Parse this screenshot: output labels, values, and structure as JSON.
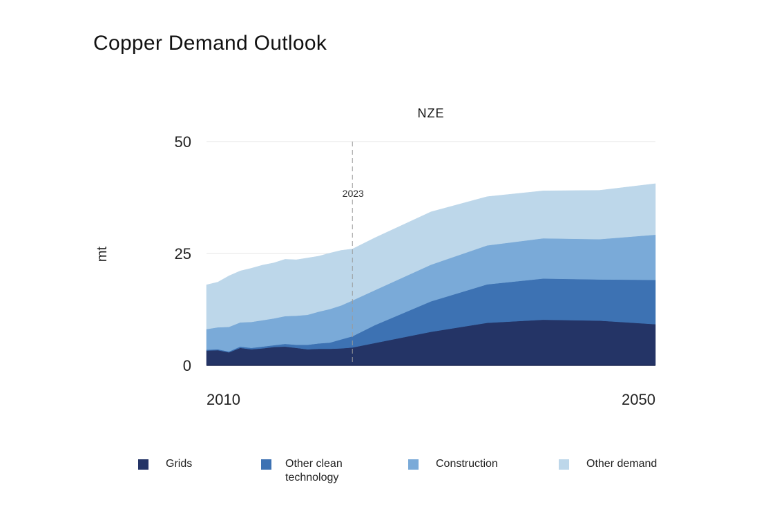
{
  "title": "Copper Demand Outlook",
  "chart_data": {
    "type": "area",
    "stacked": true,
    "scenario_label": "NZE",
    "ylabel": "mt",
    "ylim": [
      0,
      50
    ],
    "yticks": [
      0,
      25,
      50
    ],
    "xlim": [
      2010,
      2050
    ],
    "xtick_labels": [
      "2010",
      "2050"
    ],
    "annotation": {
      "x": 2023,
      "label": "2023"
    },
    "x": [
      2010,
      2011,
      2012,
      2013,
      2014,
      2015,
      2016,
      2017,
      2018,
      2019,
      2020,
      2021,
      2022,
      2023,
      2025,
      2030,
      2035,
      2040,
      2045,
      2050
    ],
    "series": [
      {
        "name": "Grids",
        "color": "#243466",
        "values": [
          3.3,
          3.4,
          2.9,
          3.9,
          3.6,
          3.8,
          4.1,
          4.2,
          3.9,
          3.6,
          3.7,
          3.7,
          3.8,
          4.0,
          5.0,
          7.5,
          9.5,
          10.2,
          10.0,
          9.2
        ]
      },
      {
        "name": "Other clean technology",
        "color": "#3d72b3",
        "values": [
          0.2,
          0.2,
          0.2,
          0.3,
          0.3,
          0.4,
          0.4,
          0.6,
          0.7,
          1.0,
          1.2,
          1.4,
          2.0,
          2.5,
          4.0,
          6.8,
          8.6,
          9.2,
          9.2,
          9.9
        ]
      },
      {
        "name": "Construction",
        "color": "#7aaad8",
        "values": [
          4.6,
          4.9,
          5.5,
          5.4,
          5.8,
          5.9,
          6.0,
          6.2,
          6.5,
          6.7,
          7.1,
          7.5,
          7.6,
          8.0,
          7.8,
          8.2,
          8.7,
          9.0,
          9.0,
          10.1
        ]
      },
      {
        "name": "Other demand",
        "color": "#bdd7ea",
        "values": [
          9.9,
          10.1,
          11.4,
          11.5,
          12.0,
          12.3,
          12.4,
          12.7,
          12.5,
          12.7,
          12.4,
          12.5,
          12.3,
          11.5,
          11.7,
          11.8,
          10.9,
          10.6,
          10.9,
          11.4
        ]
      }
    ]
  }
}
